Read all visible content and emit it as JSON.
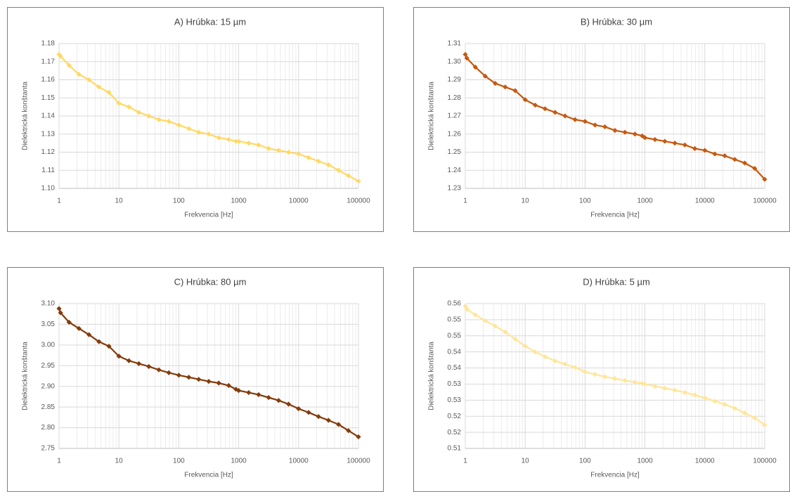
{
  "chart_data": [
    {
      "type": "line",
      "title": "A) Hrúbka: 15 µm",
      "x_label": "Frekvencia [Hz]",
      "y_label": "Dielektrická konštanta",
      "color": "#ffd966",
      "log_x": true,
      "grid": true,
      "x": [
        1,
        1.06,
        1.47,
        2.15,
        3.16,
        4.64,
        6.81,
        10,
        14.7,
        21.5,
        31.6,
        46.4,
        68.1,
        100,
        147,
        215,
        316,
        464,
        681,
        900,
        1000,
        1470,
        2150,
        3160,
        4640,
        6810,
        10000,
        14700,
        21500,
        31600,
        46400,
        68100,
        100000
      ],
      "values": [
        1.174,
        1.173,
        1.168,
        1.163,
        1.16,
        1.156,
        1.153,
        1.147,
        1.145,
        1.142,
        1.14,
        1.138,
        1.137,
        1.135,
        1.133,
        1.131,
        1.13,
        1.128,
        1.127,
        1.126,
        1.126,
        1.125,
        1.124,
        1.122,
        1.121,
        1.12,
        1.119,
        1.117,
        1.115,
        1.113,
        1.11,
        1.107,
        1.104
      ],
      "xlim": [
        1,
        100000
      ],
      "xticks": [
        1,
        10,
        100,
        1000,
        10000,
        100000
      ],
      "ylim": [
        1.1,
        1.18
      ],
      "yticks": [
        {
          "value": 1.1,
          "label": "1.10"
        },
        1.11,
        1.12,
        1.13,
        1.14,
        1.15,
        1.16,
        1.17,
        1.18
      ]
    },
    {
      "type": "line",
      "title": "B) Hrúbka: 30 µm",
      "x_label": "Frekvencia [Hz]",
      "y_label": "Dielektrická konštanta",
      "color": "#c55a11",
      "log_x": true,
      "grid": true,
      "x": [
        1,
        1.06,
        1.47,
        2.15,
        3.16,
        4.64,
        6.81,
        10,
        14.7,
        21.5,
        31.6,
        46.4,
        68.1,
        100,
        147,
        215,
        316,
        464,
        681,
        900,
        1000,
        1470,
        2150,
        3160,
        4640,
        6810,
        10000,
        14700,
        21500,
        31600,
        46400,
        68100,
        100000
      ],
      "values": [
        1.304,
        1.302,
        1.297,
        1.292,
        1.288,
        1.286,
        1.284,
        1.279,
        1.276,
        1.274,
        1.272,
        1.27,
        1.268,
        1.267,
        1.265,
        1.264,
        1.262,
        1.261,
        1.26,
        1.259,
        1.258,
        1.257,
        1.256,
        1.255,
        1.254,
        1.252,
        1.251,
        1.249,
        1.248,
        1.246,
        1.244,
        1.241,
        1.235
      ],
      "xlim": [
        1,
        100000
      ],
      "xticks": [
        1,
        10,
        100,
        1000,
        10000,
        100000
      ],
      "ylim": [
        1.23,
        1.31
      ],
      "yticks": [
        1.23,
        1.24,
        1.25,
        1.26,
        1.27,
        1.28,
        1.29,
        {
          "value": 1.3,
          "label": "1.30"
        },
        1.31
      ]
    },
    {
      "type": "line",
      "title": "C) Hrúbka: 80 µm",
      "x_label": "Frekvencia [Hz]",
      "y_label": "Dielektrická konštanta",
      "color": "#843c0c",
      "log_x": true,
      "grid": true,
      "x": [
        1,
        1.06,
        1.47,
        2.15,
        3.16,
        4.64,
        6.81,
        10,
        14.7,
        21.5,
        31.6,
        46.4,
        68.1,
        100,
        147,
        215,
        316,
        464,
        681,
        900,
        1000,
        1470,
        2150,
        3160,
        4640,
        6810,
        10000,
        14700,
        21500,
        31600,
        46400,
        68100,
        100000
      ],
      "values": [
        3.088,
        3.078,
        3.055,
        3.04,
        3.025,
        3.008,
        2.997,
        2.973,
        2.962,
        2.955,
        2.948,
        2.94,
        2.933,
        2.927,
        2.922,
        2.917,
        2.912,
        2.908,
        2.902,
        2.893,
        2.89,
        2.885,
        2.88,
        2.873,
        2.866,
        2.857,
        2.846,
        2.837,
        2.827,
        2.818,
        2.808,
        2.793,
        2.778
      ],
      "xlim": [
        1,
        100000
      ],
      "xticks": [
        1,
        10,
        100,
        1000,
        10000,
        100000
      ],
      "ylim": [
        2.75,
        3.1
      ],
      "yticks": [
        2.75,
        {
          "value": 2.8,
          "label": "2.80"
        },
        2.85,
        {
          "value": 2.9,
          "label": "2.90"
        },
        2.95,
        {
          "value": 3,
          "label": "3.00"
        },
        3.05,
        {
          "value": 3.1,
          "label": "3.10"
        }
      ]
    },
    {
      "type": "line",
      "title": "D) Hrúbka: 5 µm",
      "x_label": "Frekvencia [Hz]",
      "y_label": "Dielektrická konštanta",
      "color": "#ffe699",
      "log_x": true,
      "grid": true,
      "x": [
        1,
        1.06,
        1.47,
        2.15,
        3.16,
        4.64,
        6.81,
        10,
        14.7,
        21.5,
        31.6,
        46.4,
        68.1,
        100,
        147,
        215,
        316,
        464,
        681,
        900,
        1000,
        1470,
        2150,
        3160,
        4640,
        6810,
        10000,
        14700,
        21500,
        31600,
        46400,
        68100,
        100000
      ],
      "values": [
        0.5542,
        0.5533,
        0.5515,
        0.5497,
        0.548,
        0.5462,
        0.544,
        0.5418,
        0.54,
        0.5385,
        0.5372,
        0.5362,
        0.5352,
        0.5338,
        0.533,
        0.5323,
        0.5317,
        0.5311,
        0.5306,
        0.5302,
        0.53,
        0.5293,
        0.5287,
        0.5281,
        0.5274,
        0.5266,
        0.5257,
        0.5247,
        0.5237,
        0.5225,
        0.521,
        0.5195,
        0.5173
      ],
      "xlim": [
        1,
        100000
      ],
      "xticks": [
        1,
        10,
        100,
        1000,
        10000,
        100000
      ],
      "ylim": [
        0.51,
        0.555
      ],
      "yticks": [
        0.51,
        {
          "value": 0.515,
          "label": "0.52"
        },
        0.52,
        {
          "value": 0.525,
          "label": "0.53"
        },
        0.53,
        {
          "value": 0.535,
          "label": "0.54"
        },
        0.54,
        {
          "value": 0.545,
          "label": "0.55"
        },
        0.55,
        {
          "value": 0.555,
          "label": "0.56"
        }
      ]
    }
  ]
}
